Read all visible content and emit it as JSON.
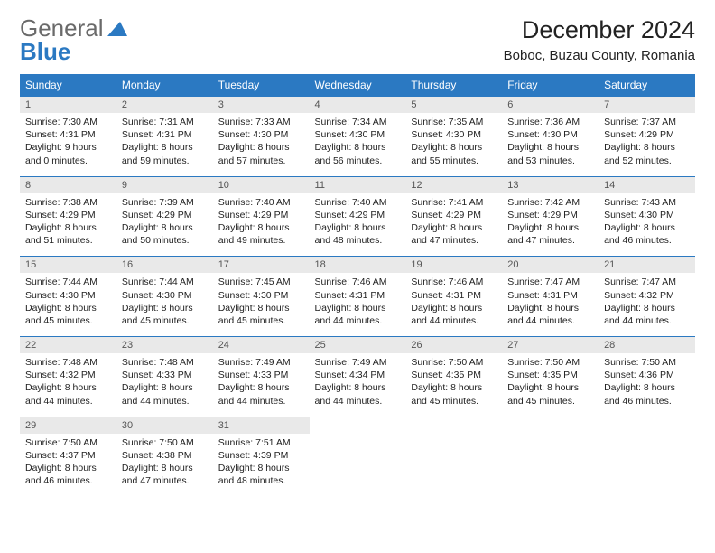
{
  "logo": {
    "general": "General",
    "blue": "Blue"
  },
  "title": "December 2024",
  "location": "Boboc, Buzau County, Romania",
  "colors": {
    "header_bg": "#2b79c2",
    "header_text": "#ffffff",
    "daynum_bg": "#e9e9e9",
    "border": "#2b79c2",
    "logo_blue": "#2b79c2",
    "logo_gray": "#6a6a6a"
  },
  "weekdays": [
    "Sunday",
    "Monday",
    "Tuesday",
    "Wednesday",
    "Thursday",
    "Friday",
    "Saturday"
  ],
  "weeks": [
    [
      {
        "day": "1",
        "sunrise": "Sunrise: 7:30 AM",
        "sunset": "Sunset: 4:31 PM",
        "daylight": "Daylight: 9 hours and 0 minutes."
      },
      {
        "day": "2",
        "sunrise": "Sunrise: 7:31 AM",
        "sunset": "Sunset: 4:31 PM",
        "daylight": "Daylight: 8 hours and 59 minutes."
      },
      {
        "day": "3",
        "sunrise": "Sunrise: 7:33 AM",
        "sunset": "Sunset: 4:30 PM",
        "daylight": "Daylight: 8 hours and 57 minutes."
      },
      {
        "day": "4",
        "sunrise": "Sunrise: 7:34 AM",
        "sunset": "Sunset: 4:30 PM",
        "daylight": "Daylight: 8 hours and 56 minutes."
      },
      {
        "day": "5",
        "sunrise": "Sunrise: 7:35 AM",
        "sunset": "Sunset: 4:30 PM",
        "daylight": "Daylight: 8 hours and 55 minutes."
      },
      {
        "day": "6",
        "sunrise": "Sunrise: 7:36 AM",
        "sunset": "Sunset: 4:30 PM",
        "daylight": "Daylight: 8 hours and 53 minutes."
      },
      {
        "day": "7",
        "sunrise": "Sunrise: 7:37 AM",
        "sunset": "Sunset: 4:29 PM",
        "daylight": "Daylight: 8 hours and 52 minutes."
      }
    ],
    [
      {
        "day": "8",
        "sunrise": "Sunrise: 7:38 AM",
        "sunset": "Sunset: 4:29 PM",
        "daylight": "Daylight: 8 hours and 51 minutes."
      },
      {
        "day": "9",
        "sunrise": "Sunrise: 7:39 AM",
        "sunset": "Sunset: 4:29 PM",
        "daylight": "Daylight: 8 hours and 50 minutes."
      },
      {
        "day": "10",
        "sunrise": "Sunrise: 7:40 AM",
        "sunset": "Sunset: 4:29 PM",
        "daylight": "Daylight: 8 hours and 49 minutes."
      },
      {
        "day": "11",
        "sunrise": "Sunrise: 7:40 AM",
        "sunset": "Sunset: 4:29 PM",
        "daylight": "Daylight: 8 hours and 48 minutes."
      },
      {
        "day": "12",
        "sunrise": "Sunrise: 7:41 AM",
        "sunset": "Sunset: 4:29 PM",
        "daylight": "Daylight: 8 hours and 47 minutes."
      },
      {
        "day": "13",
        "sunrise": "Sunrise: 7:42 AM",
        "sunset": "Sunset: 4:29 PM",
        "daylight": "Daylight: 8 hours and 47 minutes."
      },
      {
        "day": "14",
        "sunrise": "Sunrise: 7:43 AM",
        "sunset": "Sunset: 4:30 PM",
        "daylight": "Daylight: 8 hours and 46 minutes."
      }
    ],
    [
      {
        "day": "15",
        "sunrise": "Sunrise: 7:44 AM",
        "sunset": "Sunset: 4:30 PM",
        "daylight": "Daylight: 8 hours and 45 minutes."
      },
      {
        "day": "16",
        "sunrise": "Sunrise: 7:44 AM",
        "sunset": "Sunset: 4:30 PM",
        "daylight": "Daylight: 8 hours and 45 minutes."
      },
      {
        "day": "17",
        "sunrise": "Sunrise: 7:45 AM",
        "sunset": "Sunset: 4:30 PM",
        "daylight": "Daylight: 8 hours and 45 minutes."
      },
      {
        "day": "18",
        "sunrise": "Sunrise: 7:46 AM",
        "sunset": "Sunset: 4:31 PM",
        "daylight": "Daylight: 8 hours and 44 minutes."
      },
      {
        "day": "19",
        "sunrise": "Sunrise: 7:46 AM",
        "sunset": "Sunset: 4:31 PM",
        "daylight": "Daylight: 8 hours and 44 minutes."
      },
      {
        "day": "20",
        "sunrise": "Sunrise: 7:47 AM",
        "sunset": "Sunset: 4:31 PM",
        "daylight": "Daylight: 8 hours and 44 minutes."
      },
      {
        "day": "21",
        "sunrise": "Sunrise: 7:47 AM",
        "sunset": "Sunset: 4:32 PM",
        "daylight": "Daylight: 8 hours and 44 minutes."
      }
    ],
    [
      {
        "day": "22",
        "sunrise": "Sunrise: 7:48 AM",
        "sunset": "Sunset: 4:32 PM",
        "daylight": "Daylight: 8 hours and 44 minutes."
      },
      {
        "day": "23",
        "sunrise": "Sunrise: 7:48 AM",
        "sunset": "Sunset: 4:33 PM",
        "daylight": "Daylight: 8 hours and 44 minutes."
      },
      {
        "day": "24",
        "sunrise": "Sunrise: 7:49 AM",
        "sunset": "Sunset: 4:33 PM",
        "daylight": "Daylight: 8 hours and 44 minutes."
      },
      {
        "day": "25",
        "sunrise": "Sunrise: 7:49 AM",
        "sunset": "Sunset: 4:34 PM",
        "daylight": "Daylight: 8 hours and 44 minutes."
      },
      {
        "day": "26",
        "sunrise": "Sunrise: 7:50 AM",
        "sunset": "Sunset: 4:35 PM",
        "daylight": "Daylight: 8 hours and 45 minutes."
      },
      {
        "day": "27",
        "sunrise": "Sunrise: 7:50 AM",
        "sunset": "Sunset: 4:35 PM",
        "daylight": "Daylight: 8 hours and 45 minutes."
      },
      {
        "day": "28",
        "sunrise": "Sunrise: 7:50 AM",
        "sunset": "Sunset: 4:36 PM",
        "daylight": "Daylight: 8 hours and 46 minutes."
      }
    ],
    [
      {
        "day": "29",
        "sunrise": "Sunrise: 7:50 AM",
        "sunset": "Sunset: 4:37 PM",
        "daylight": "Daylight: 8 hours and 46 minutes."
      },
      {
        "day": "30",
        "sunrise": "Sunrise: 7:50 AM",
        "sunset": "Sunset: 4:38 PM",
        "daylight": "Daylight: 8 hours and 47 minutes."
      },
      {
        "day": "31",
        "sunrise": "Sunrise: 7:51 AM",
        "sunset": "Sunset: 4:39 PM",
        "daylight": "Daylight: 8 hours and 48 minutes."
      },
      null,
      null,
      null,
      null
    ]
  ]
}
